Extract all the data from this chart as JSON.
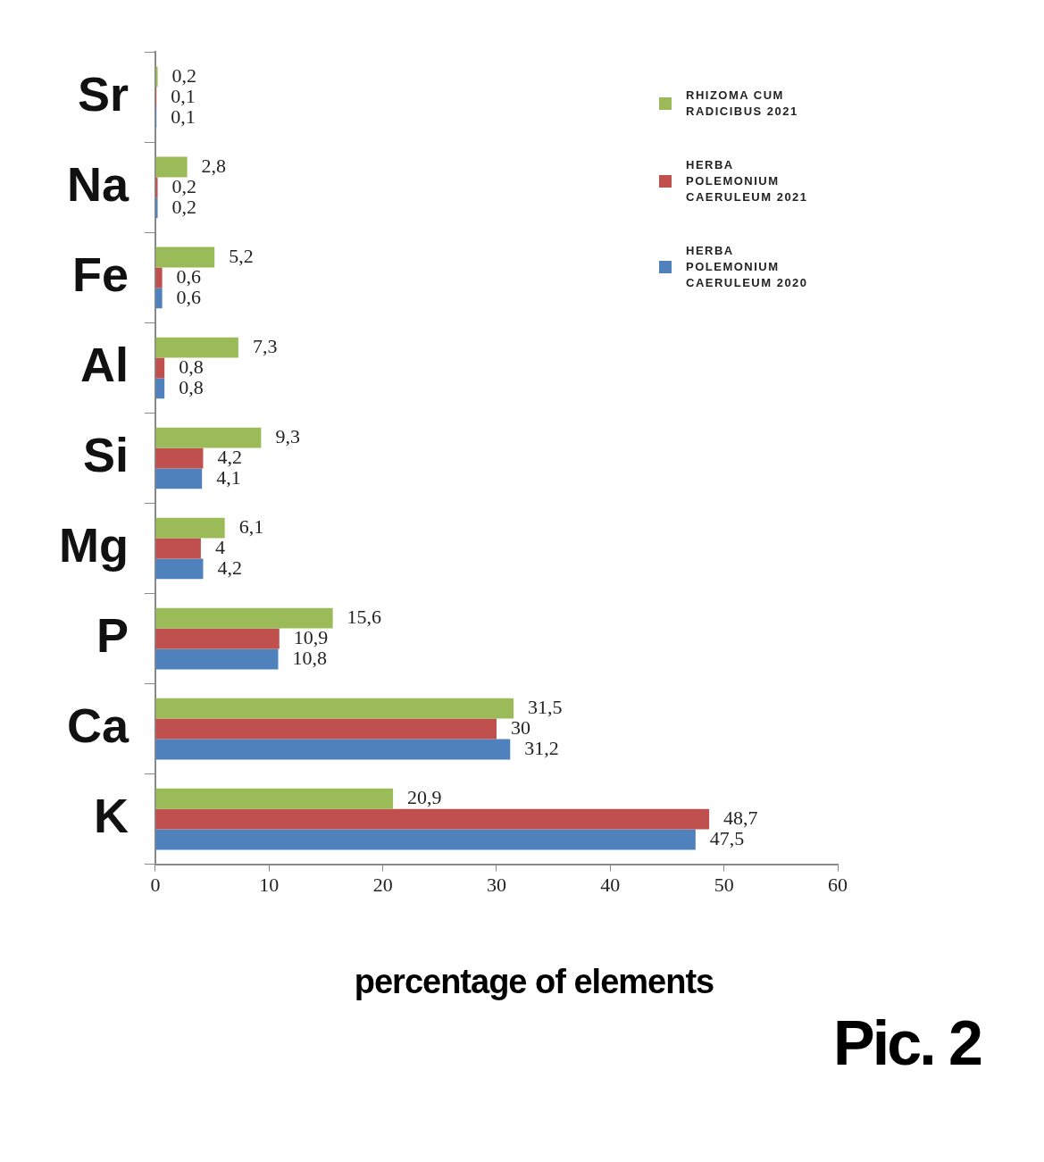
{
  "chart_data": {
    "type": "bar",
    "orientation": "horizontal",
    "xlabel": "percentage of elements",
    "categories": [
      "Sr",
      "Na",
      "Fe",
      "Al",
      "Si",
      "Mg",
      "P",
      "Ca",
      "K"
    ],
    "series": [
      {
        "name": "RHIZOMA CUM RADICIBUS 2021",
        "color": "#9bbb59",
        "values": [
          0.2,
          2.8,
          5.2,
          7.3,
          9.3,
          6.1,
          15.6,
          31.5,
          20.9
        ],
        "value_labels": [
          "0,2",
          "2,8",
          "5,2",
          "7,3",
          "9,3",
          "6,1",
          "15,6",
          "31,5",
          "20,9"
        ]
      },
      {
        "name": "HERBA POLEMONIUM CAERULEUM 2021",
        "color": "#c0504d",
        "values": [
          0.1,
          0.2,
          0.6,
          0.8,
          4.2,
          4,
          10.9,
          30,
          48.7
        ],
        "value_labels": [
          "0,1",
          "0,2",
          "0,6",
          "0,8",
          "4,2",
          "4",
          "10,9",
          "30",
          "48,7"
        ]
      },
      {
        "name": "HERBA POLEMONIUM CAERULEUM 2020",
        "color": "#4f81bd",
        "values": [
          0.1,
          0.2,
          0.6,
          0.8,
          4.1,
          4.2,
          10.8,
          31.2,
          47.5
        ],
        "value_labels": [
          "0,1",
          "0,2",
          "0,6",
          "0,8",
          "4,1",
          "4,2",
          "10,8",
          "31,2",
          "47,5"
        ]
      }
    ],
    "xlim": [
      0,
      60
    ],
    "xticks": [
      0,
      10,
      20,
      30,
      40,
      50,
      60
    ],
    "grid": false,
    "legend": "top right",
    "annotations": [
      "Pic. 2"
    ]
  }
}
